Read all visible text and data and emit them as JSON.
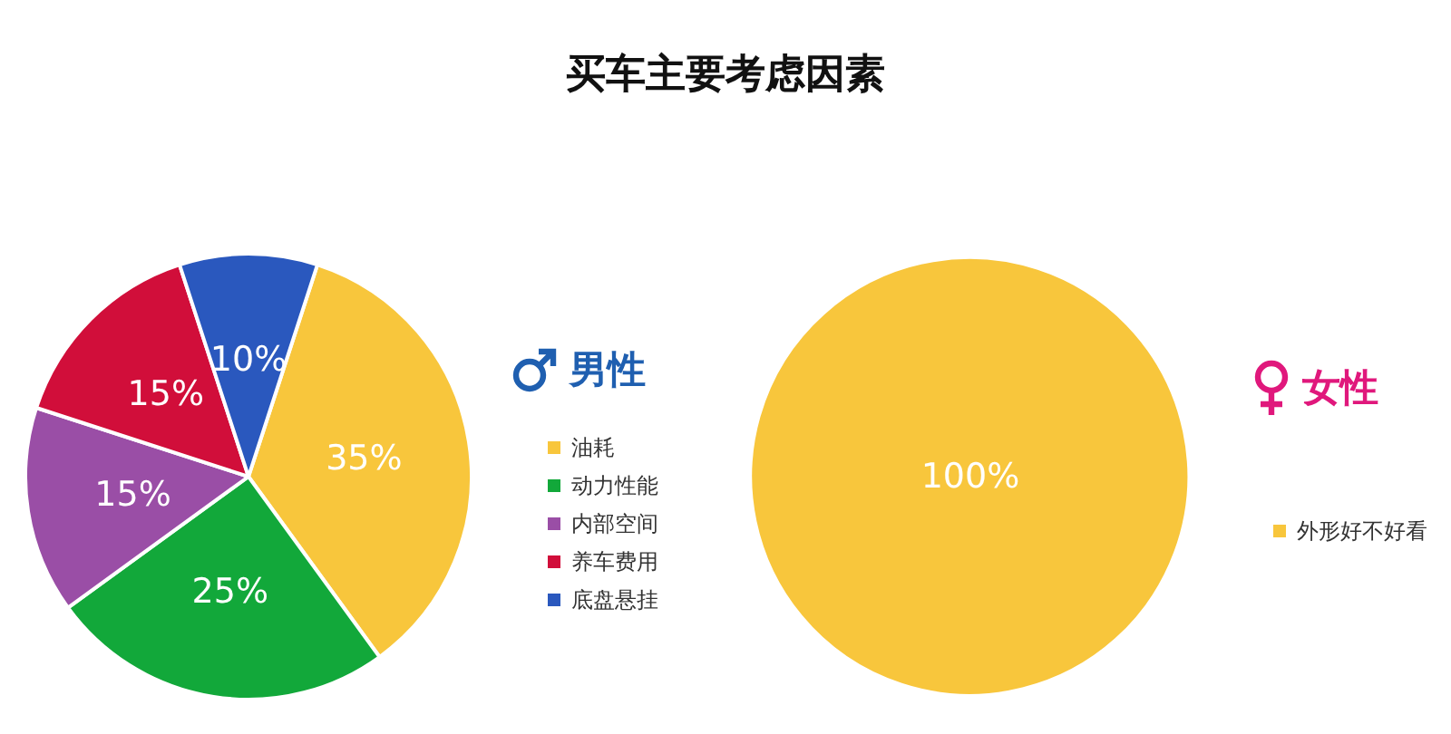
{
  "chart_data": [
    {
      "type": "pie",
      "title": "买车主要考虑因素",
      "legend_title": "男性",
      "categories": [
        "油耗",
        "动力性能",
        "内部空间",
        "养车费用",
        "底盘悬挂"
      ],
      "values": [
        35,
        25,
        15,
        15,
        10
      ],
      "value_labels": [
        "35%",
        "25%",
        "15%",
        "15%",
        "10%"
      ],
      "colors": [
        "#f8c63c",
        "#12a83a",
        "#9a4ea6",
        "#d10e3a",
        "#2a58be"
      ],
      "legend": "right"
    },
    {
      "type": "pie",
      "legend_title": "女性",
      "categories": [
        "外形好不好看"
      ],
      "values": [
        100
      ],
      "value_labels": [
        "100%"
      ],
      "colors": [
        "#f8c63c"
      ],
      "legend": "right"
    }
  ]
}
